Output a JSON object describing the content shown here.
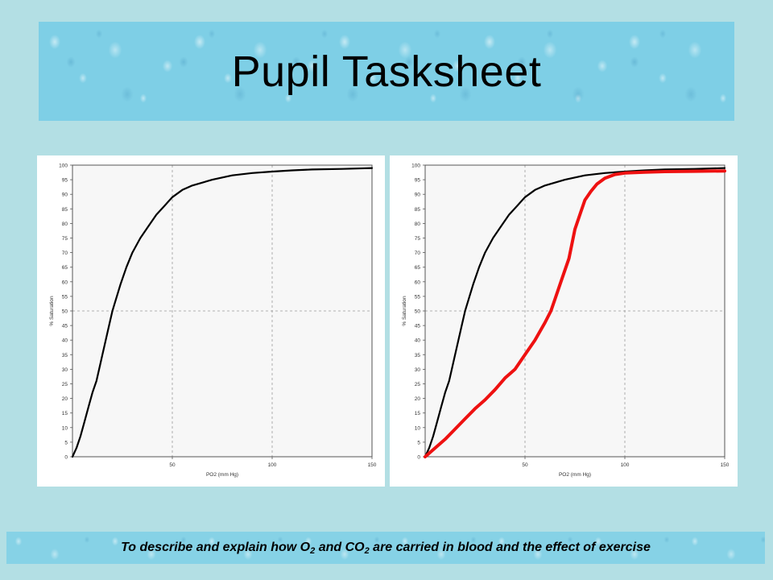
{
  "slide": {
    "title": "Pupil Tasksheet",
    "footer": {
      "part1": "To describe and explain how O",
      "sub1": "2",
      "part2": " and CO",
      "sub2": "2",
      "part3": " are carried in blood and the effect of exercise"
    }
  },
  "colors": {
    "background": "#b3dfe4",
    "resting_curve": "#000000",
    "exercise_curve": "#ee1111"
  },
  "chart_data": [
    {
      "type": "line",
      "xlabel": "PO2 (mm Hg)",
      "ylabel": "% Saturation",
      "xlim": [
        0,
        150
      ],
      "ylim": [
        0,
        100
      ],
      "x_ticks": [
        50,
        100,
        150
      ],
      "y_ticks": [
        0,
        5,
        10,
        15,
        20,
        25,
        30,
        35,
        40,
        45,
        50,
        55,
        60,
        65,
        70,
        75,
        80,
        85,
        90,
        95,
        100
      ],
      "grid": true,
      "series": [
        {
          "color": "#000000",
          "x": [
            0,
            2,
            4,
            6,
            8,
            10,
            12,
            15,
            18,
            20,
            24,
            27,
            30,
            34,
            38,
            42,
            46,
            50,
            55,
            60,
            70,
            80,
            90,
            100,
            110,
            120,
            135,
            150
          ],
          "y": [
            0,
            3,
            7,
            12,
            17,
            22,
            26,
            35,
            44,
            50,
            59,
            65,
            70,
            75,
            79,
            83,
            86,
            89,
            91.5,
            93,
            95,
            96.5,
            97.3,
            97.8,
            98.2,
            98.5,
            98.7,
            99
          ]
        }
      ]
    },
    {
      "type": "line",
      "xlabel": "PO2 (mm Hg)",
      "ylabel": "% Saturation",
      "xlim": [
        0,
        150
      ],
      "ylim": [
        0,
        100
      ],
      "x_ticks": [
        50,
        100,
        150
      ],
      "y_ticks": [
        0,
        5,
        10,
        15,
        20,
        25,
        30,
        35,
        40,
        45,
        50,
        55,
        60,
        65,
        70,
        75,
        80,
        85,
        90,
        95,
        100
      ],
      "grid": true,
      "series": [
        {
          "color": "#000000",
          "x": [
            0,
            2,
            4,
            6,
            8,
            10,
            12,
            15,
            18,
            20,
            24,
            27,
            30,
            34,
            38,
            42,
            46,
            50,
            55,
            60,
            70,
            80,
            90,
            100,
            110,
            120,
            135,
            150
          ],
          "y": [
            0,
            3,
            7,
            12,
            17,
            22,
            26,
            35,
            44,
            50,
            59,
            65,
            70,
            75,
            79,
            83,
            86,
            89,
            91.5,
            93,
            95,
            96.5,
            97.3,
            97.8,
            98.2,
            98.5,
            98.7,
            99
          ]
        },
        {
          "color": "#ee1111",
          "x": [
            0,
            5,
            10,
            15,
            20,
            25,
            30,
            35,
            40,
            45,
            50,
            55,
            60,
            63,
            65,
            68,
            70,
            72,
            75,
            78,
            80,
            83,
            86,
            90,
            95,
            100,
            110,
            120,
            135,
            150
          ],
          "y": [
            0,
            3,
            6,
            9.5,
            13,
            16.5,
            19.5,
            23,
            27,
            30,
            35,
            40,
            46,
            50,
            54,
            60,
            64,
            68,
            78,
            84,
            88,
            91,
            93.5,
            95.5,
            96.8,
            97.3,
            97.6,
            97.8,
            97.9,
            98
          ]
        }
      ]
    }
  ]
}
